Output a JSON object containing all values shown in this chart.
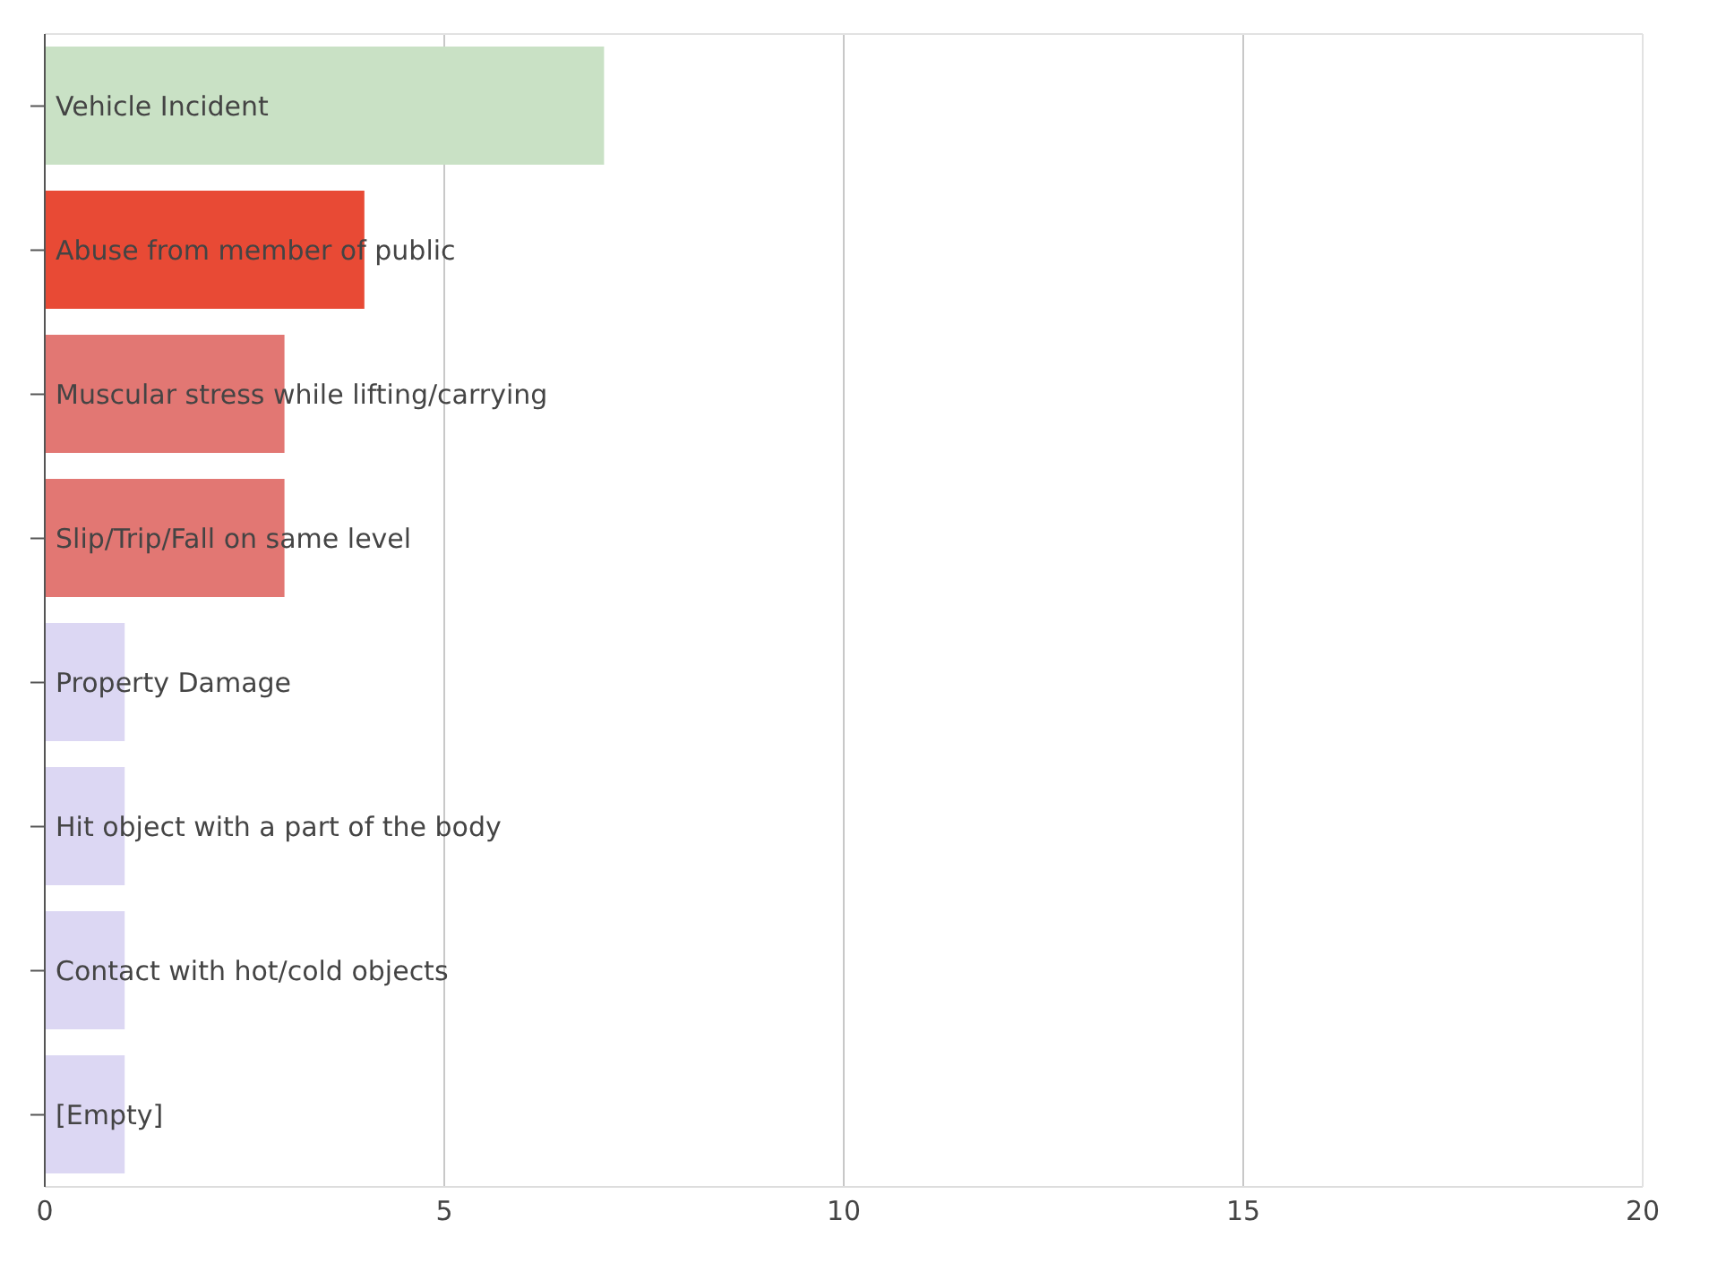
{
  "chart_data": {
    "type": "bar",
    "orientation": "horizontal",
    "categories": [
      "Vehicle Incident",
      "Abuse from member of public",
      "Muscular stress while lifting/carrying",
      "Slip/Trip/Fall on same level",
      "Property Damage",
      "Hit object with a part of the body",
      "Contact with hot/cold objects",
      "[Empty]"
    ],
    "values": [
      7,
      4,
      3,
      3,
      1,
      1,
      1,
      1
    ],
    "colors": [
      "#c9e1c5",
      "#e84a35",
      "#e27773",
      "#e27773",
      "#dcd7f3",
      "#dcd7f3",
      "#dcd7f3",
      "#dcd7f3"
    ],
    "xlim": [
      0,
      20
    ],
    "xticks": [
      0,
      5,
      10,
      15,
      20
    ],
    "grid": "x"
  }
}
